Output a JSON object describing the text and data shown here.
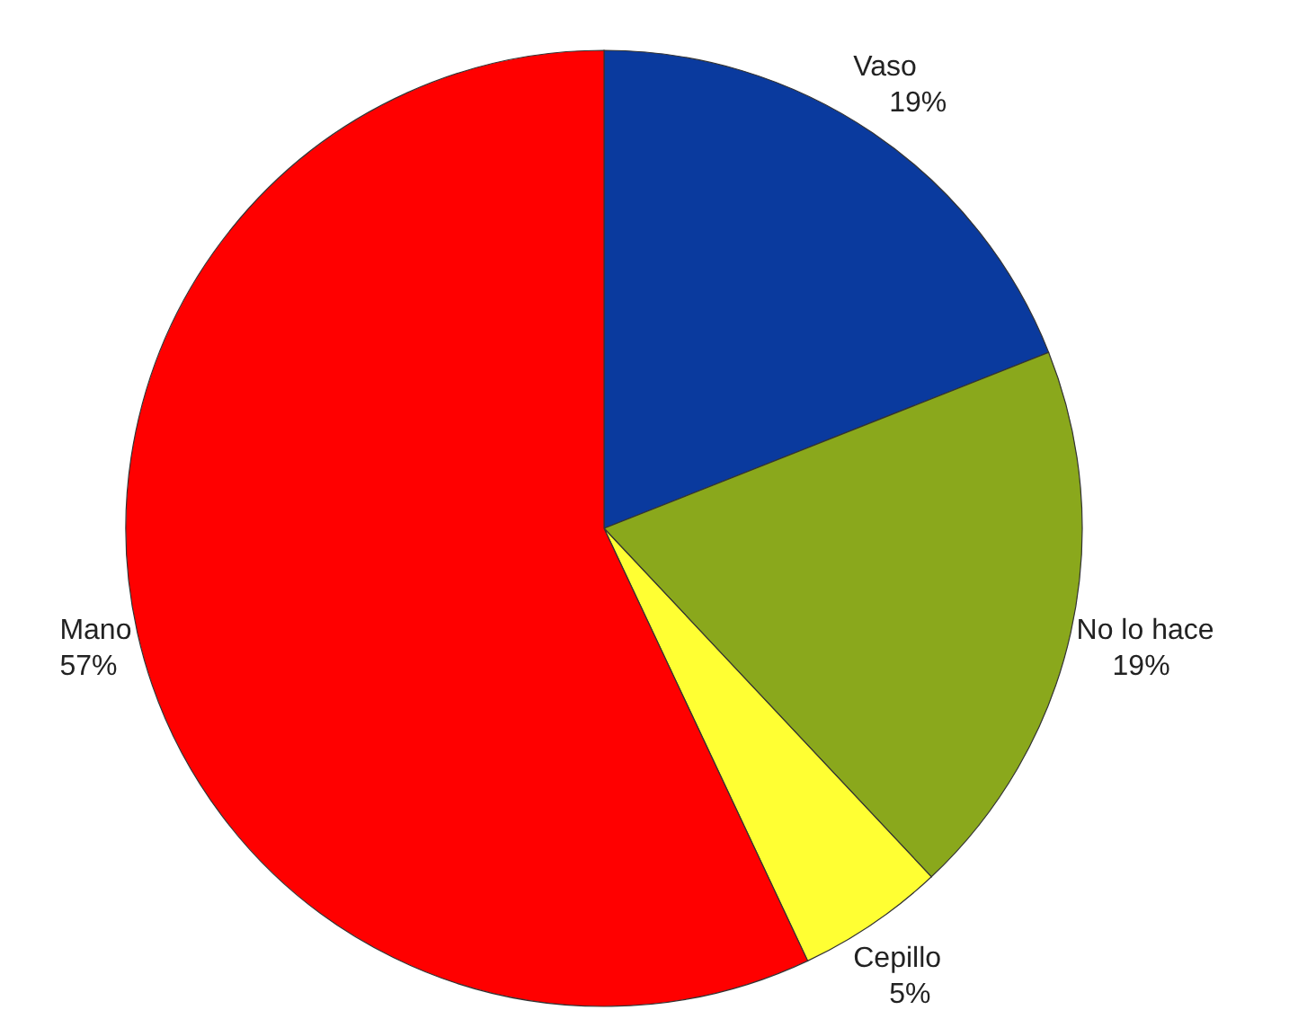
{
  "chart_data": {
    "type": "pie",
    "categories": [
      "Vaso",
      "No lo hace",
      "Cepillo",
      "Mano"
    ],
    "values": [
      19,
      19,
      5,
      57
    ],
    "colors": [
      "#0a3a9e",
      "#8aa81c",
      "#ffff33",
      "#ff0000"
    ],
    "value_labels": [
      "19%",
      "19%",
      "5%",
      "57%"
    ]
  }
}
